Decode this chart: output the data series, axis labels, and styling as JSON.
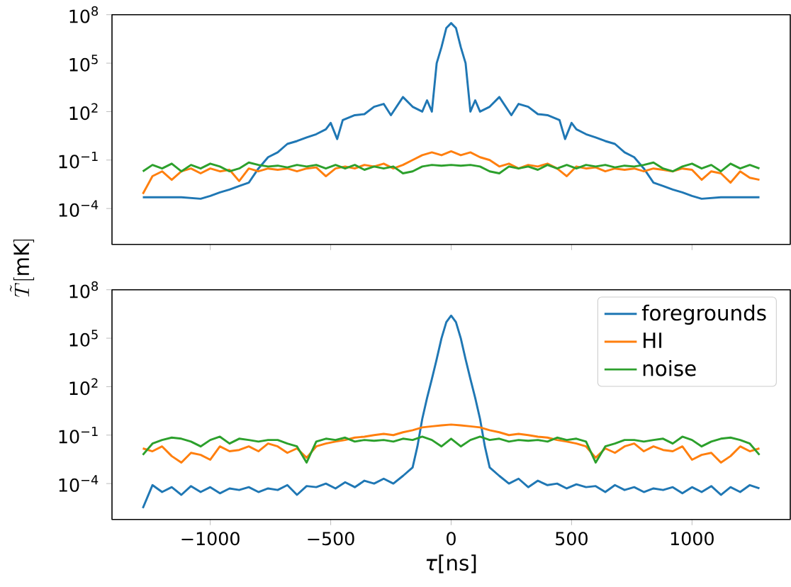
{
  "chart_data": [
    {
      "type": "line",
      "ylabel": "\\tilde{T}[\\mathrm{mK}]",
      "log": "y",
      "tick_labels": "y",
      "xlim": [
        -1408,
        1408
      ],
      "ylim": [
        6e-07,
        100000000.0
      ],
      "xticks": [
        {
          "value": -1000,
          "label": null
        },
        {
          "value": -500,
          "label": null
        },
        {
          "value": 0,
          "label": null
        },
        {
          "value": 500,
          "label": null
        },
        {
          "value": 1000,
          "label": null
        }
      ],
      "yticks": [
        {
          "value": 0.0001,
          "label": "10$^{−4}$"
        },
        {
          "value": 0.1,
          "label": "10$^{−1}$"
        },
        {
          "value": 100,
          "label": "10$^{2}$"
        },
        {
          "value": 100000.0,
          "label": "10$^{5}$"
        },
        {
          "value": 100000000.0,
          "label": "10$^{8}$"
        }
      ],
      "x": [
        -1280,
        -1240,
        -1200,
        -1160,
        -1120,
        -1080,
        -1040,
        -1000,
        -960,
        -920,
        -880,
        -840,
        -800,
        -760,
        -720,
        -680,
        -640,
        -600,
        -560,
        -520,
        -480,
        -440,
        -400,
        -360,
        -320,
        -280,
        -240,
        -200,
        -160,
        -120,
        -80,
        -40,
        0,
        40,
        80,
        120,
        160,
        200,
        240,
        280,
        320,
        360,
        400,
        440,
        480,
        520,
        560,
        600,
        640,
        680,
        720,
        760,
        800,
        840,
        880,
        920,
        960,
        1000,
        1040,
        1080,
        1120,
        1160,
        1200,
        1240,
        1280
      ],
      "series": [
        {
          "color": "#1f77b4",
          "x": [
            -1280,
            -1200,
            -1120,
            -1040,
            -1000,
            -960,
            -920,
            -880,
            -840,
            -800,
            -760,
            -720,
            -680,
            -640,
            -600,
            -560,
            -520,
            -500,
            -473,
            -450,
            -400,
            -360,
            -320,
            -280,
            -250,
            -200,
            -160,
            -120,
            -100,
            -80,
            -60,
            -40,
            -20,
            0,
            20,
            40,
            60,
            80,
            100,
            120,
            160,
            200,
            250,
            280,
            320,
            360,
            400,
            450,
            473,
            500,
            520,
            560,
            600,
            640,
            680,
            720,
            760,
            800,
            840,
            880,
            920,
            960,
            1000,
            1040,
            1120,
            1200,
            1280
          ],
          "values": [
            0.0005,
            0.0005,
            0.0005,
            0.0004,
            0.0006,
            0.001,
            0.0015,
            0.0025,
            0.004,
            0.03,
            0.15,
            0.3,
            1,
            1.5,
            2.5,
            4,
            8,
            20,
            2,
            30,
            60,
            70,
            200,
            300,
            60,
            800,
            200,
            100,
            500,
            100,
            100000.0,
            1000000.0,
            15000000.0,
            30000000.0,
            15000000.0,
            1000000.0,
            100000.0,
            100,
            500,
            100,
            200,
            800,
            60,
            300,
            200,
            70,
            60,
            30,
            2,
            20,
            8,
            4,
            2.5,
            1.5,
            1,
            0.3,
            0.15,
            0.03,
            0.004,
            0.0025,
            0.0015,
            0.001,
            0.0006,
            0.0004,
            0.0005,
            0.0005,
            0.0005
          ]
        },
        {
          "color": "#ff7f0e",
          "values": [
            0.0008,
            0.01,
            0.02,
            0.006,
            0.02,
            0.03,
            0.015,
            0.03,
            0.02,
            0.025,
            0.005,
            0.03,
            0.02,
            0.03,
            0.025,
            0.03,
            0.02,
            0.03,
            0.035,
            0.01,
            0.03,
            0.04,
            0.03,
            0.05,
            0.04,
            0.06,
            0.03,
            0.05,
            0.1,
            0.2,
            0.3,
            0.2,
            0.35,
            0.2,
            0.3,
            0.15,
            0.1,
            0.04,
            0.06,
            0.03,
            0.05,
            0.04,
            0.06,
            0.03,
            0.01,
            0.04,
            0.03,
            0.035,
            0.02,
            0.03,
            0.025,
            0.03,
            0.02,
            0.03,
            0.025,
            0.02,
            0.03,
            0.025,
            0.006,
            0.02,
            0.015,
            0.004,
            0.02,
            0.008,
            0.006
          ]
        },
        {
          "color": "#2ca02c",
          "values": [
            0.02,
            0.05,
            0.03,
            0.06,
            0.02,
            0.05,
            0.03,
            0.06,
            0.04,
            0.02,
            0.03,
            0.07,
            0.05,
            0.04,
            0.045,
            0.035,
            0.05,
            0.04,
            0.05,
            0.03,
            0.05,
            0.03,
            0.05,
            0.025,
            0.04,
            0.03,
            0.04,
            0.015,
            0.02,
            0.04,
            0.05,
            0.045,
            0.05,
            0.045,
            0.05,
            0.04,
            0.02,
            0.015,
            0.04,
            0.03,
            0.04,
            0.025,
            0.05,
            0.03,
            0.05,
            0.03,
            0.05,
            0.04,
            0.05,
            0.035,
            0.045,
            0.04,
            0.05,
            0.07,
            0.03,
            0.02,
            0.04,
            0.06,
            0.03,
            0.05,
            0.02,
            0.06,
            0.03,
            0.05,
            0.03
          ]
        }
      ]
    },
    {
      "type": "line",
      "xlabel": "*τ*[ns]",
      "log": "y",
      "legend": "top right",
      "xlim": [
        -1408,
        1408
      ],
      "ylim": [
        6e-07,
        100000000.0
      ],
      "xticks": [
        {
          "value": -1000,
          "label": "−1000"
        },
        {
          "value": -500,
          "label": "−500"
        },
        0,
        500,
        1000
      ],
      "yticks": [
        {
          "value": 0.0001,
          "label": "10$^{−4}$"
        },
        {
          "value": 0.1,
          "label": "10$^{−1}$"
        },
        {
          "value": 100,
          "label": "10$^{2}$"
        },
        {
          "value": 100000.0,
          "label": "10$^{5}$"
        },
        {
          "value": 100000000.0,
          "label": "10$^{8}$"
        }
      ],
      "x": [
        -1280,
        -1240,
        -1200,
        -1160,
        -1120,
        -1080,
        -1040,
        -1000,
        -960,
        -920,
        -880,
        -840,
        -800,
        -760,
        -720,
        -680,
        -640,
        -600,
        -560,
        -520,
        -480,
        -440,
        -400,
        -360,
        -320,
        -280,
        -240,
        -200,
        -160,
        -120,
        -80,
        -40,
        0,
        40,
        80,
        120,
        160,
        200,
        240,
        280,
        320,
        360,
        400,
        440,
        480,
        520,
        560,
        600,
        640,
        680,
        720,
        760,
        800,
        840,
        880,
        920,
        960,
        1000,
        1040,
        1080,
        1120,
        1160,
        1200,
        1240,
        1280
      ],
      "series": [
        {
          "name": "foregrounds",
          "color": "#1f77b4",
          "x": [
            -1280,
            -1240,
            -1200,
            -1160,
            -1120,
            -1080,
            -1040,
            -1000,
            -960,
            -920,
            -880,
            -840,
            -800,
            -760,
            -720,
            -680,
            -640,
            -600,
            -560,
            -520,
            -480,
            -440,
            -400,
            -360,
            -320,
            -280,
            -240,
            -200,
            -160,
            -140,
            -120,
            -100,
            -80,
            -60,
            -40,
            -20,
            0,
            20,
            40,
            60,
            80,
            100,
            120,
            140,
            160,
            200,
            240,
            280,
            320,
            360,
            400,
            440,
            480,
            520,
            560,
            600,
            640,
            680,
            720,
            760,
            800,
            840,
            880,
            920,
            960,
            1000,
            1040,
            1080,
            1120,
            1160,
            1200,
            1240,
            1280
          ],
          "values": [
            3e-06,
            8e-05,
            3e-05,
            6e-05,
            2e-05,
            7e-05,
            3e-05,
            6e-05,
            2.5e-05,
            5e-05,
            4e-05,
            6e-05,
            3e-05,
            5e-05,
            4e-05,
            8e-05,
            2e-05,
            7e-05,
            6e-05,
            0.0001,
            5e-05,
            0.00012,
            6e-05,
            0.00015,
            0.0001,
            0.0002,
            0.0001,
            0.0003,
            0.001,
            0.02,
            1,
            20,
            300,
            5000.0,
            100000.0,
            1000000.0,
            2500000.0,
            1000000.0,
            100000.0,
            5000.0,
            300,
            20,
            1,
            0.02,
            0.001,
            0.0003,
            0.0001,
            0.0002,
            6e-05,
            0.00015,
            8e-05,
            0.0001,
            5e-05,
            9e-05,
            6e-05,
            7e-05,
            3e-05,
            8e-05,
            4e-05,
            6e-05,
            3e-05,
            5e-05,
            4e-05,
            6e-05,
            2.5e-05,
            6e-05,
            3e-05,
            7e-05,
            2e-05,
            6e-05,
            3e-05,
            8e-05,
            5e-05
          ]
        },
        {
          "name": "HI",
          "color": "#ff7f0e",
          "values": [
            0.015,
            0.01,
            0.02,
            0.005,
            0.002,
            0.008,
            0.006,
            0.003,
            0.02,
            0.01,
            0.012,
            0.02,
            0.01,
            0.03,
            0.02,
            0.008,
            0.015,
            0.004,
            0.02,
            0.03,
            0.04,
            0.05,
            0.07,
            0.08,
            0.1,
            0.12,
            0.1,
            0.15,
            0.2,
            0.3,
            0.35,
            0.4,
            0.45,
            0.4,
            0.35,
            0.3,
            0.2,
            0.15,
            0.1,
            0.12,
            0.1,
            0.08,
            0.07,
            0.05,
            0.04,
            0.03,
            0.02,
            0.004,
            0.015,
            0.008,
            0.02,
            0.03,
            0.01,
            0.02,
            0.012,
            0.01,
            0.02,
            0.003,
            0.006,
            0.008,
            0.002,
            0.005,
            0.02,
            0.01,
            0.015
          ]
        },
        {
          "name": "noise",
          "color": "#2ca02c",
          "values": [
            0.006,
            0.03,
            0.05,
            0.07,
            0.06,
            0.04,
            0.02,
            0.05,
            0.08,
            0.03,
            0.06,
            0.05,
            0.04,
            0.05,
            0.05,
            0.03,
            0.02,
            0.002,
            0.04,
            0.06,
            0.05,
            0.07,
            0.04,
            0.05,
            0.045,
            0.05,
            0.04,
            0.06,
            0.05,
            0.08,
            0.05,
            0.02,
            0.06,
            0.02,
            0.05,
            0.08,
            0.05,
            0.06,
            0.04,
            0.05,
            0.045,
            0.05,
            0.04,
            0.07,
            0.05,
            0.06,
            0.04,
            0.002,
            0.02,
            0.03,
            0.05,
            0.05,
            0.04,
            0.05,
            0.06,
            0.03,
            0.08,
            0.05,
            0.02,
            0.04,
            0.06,
            0.07,
            0.05,
            0.03,
            0.006
          ]
        }
      ]
    }
  ]
}
